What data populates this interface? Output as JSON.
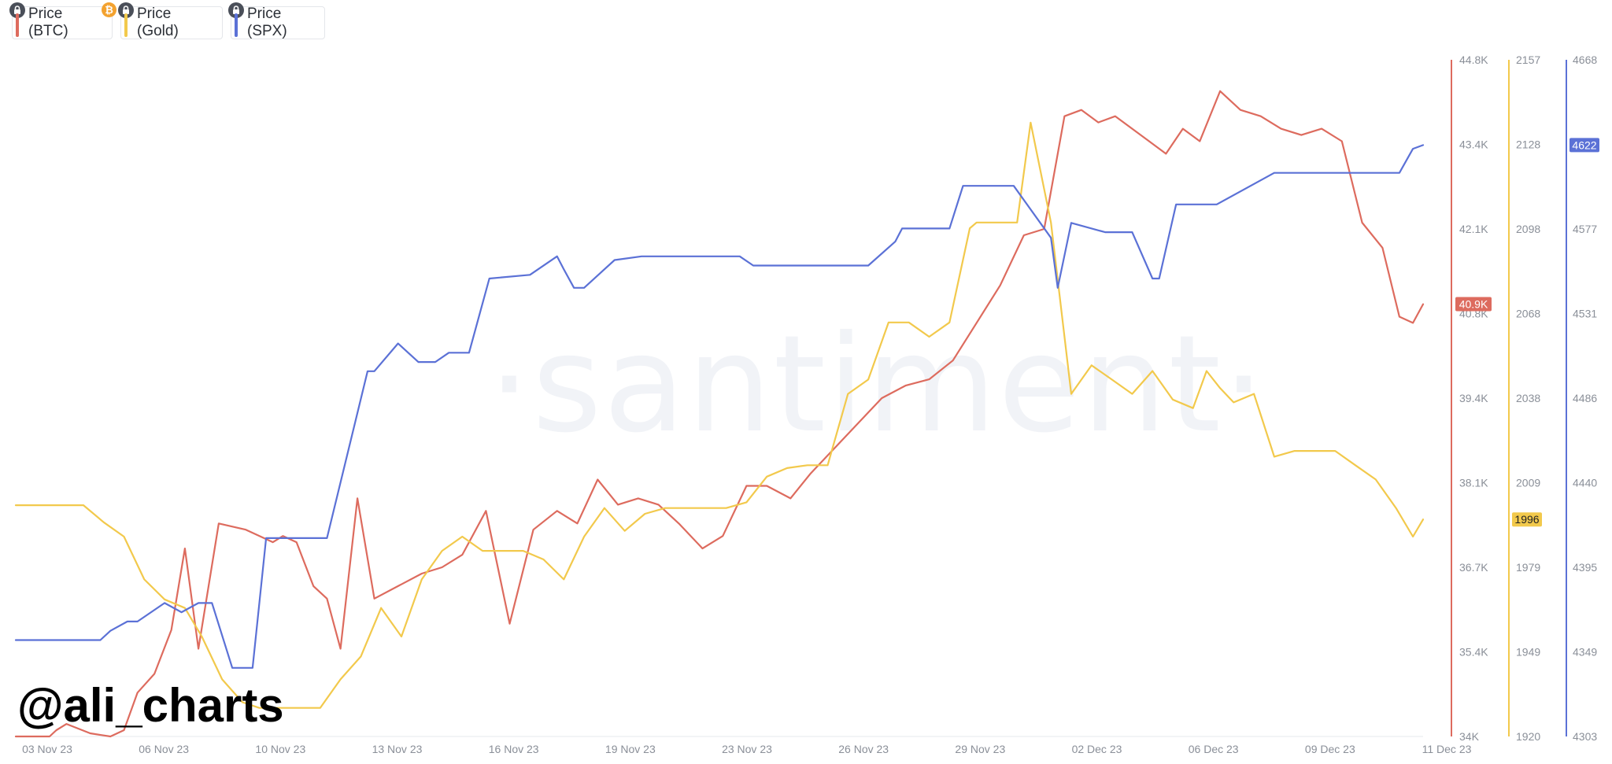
{
  "legend": {
    "btc_label": "Price (BTC)",
    "gold_label": "Price (Gold)",
    "spx_label": "Price (SPX)",
    "btc_badge_symbol": "₿"
  },
  "watermark": "·santiment·",
  "handle": "@ali_charts",
  "colors": {
    "btc": "#dd6b5e",
    "gold": "#f2c94c",
    "spx": "#5b71d6",
    "axis_text": "#8a8f98"
  },
  "icons": {
    "lock": "lock-icon",
    "btc": "bitcoin-icon"
  },
  "chart_data": {
    "type": "line",
    "x_start": "03 Nov 23",
    "x_end": "11 Dec 23",
    "x_ticks": [
      "03 Nov 23",
      "06 Nov 23",
      "10 Nov 23",
      "13 Nov 23",
      "16 Nov 23",
      "19 Nov 23",
      "23 Nov 23",
      "26 Nov 23",
      "29 Nov 23",
      "02 Dec 23",
      "06 Dec 23",
      "09 Dec 23",
      "11 Dec 23"
    ],
    "axes": {
      "btc": {
        "range": [
          34000,
          44800
        ],
        "ticks": [
          "44.8K",
          "43.4K",
          "42.1K",
          "40.8K",
          "39.4K",
          "38.1K",
          "36.7K",
          "35.4K",
          "34K"
        ],
        "current": "40.9K",
        "current_value": 40900
      },
      "gold": {
        "range": [
          1920,
          2157
        ],
        "ticks": [
          "2157",
          "2128",
          "2098",
          "2068",
          "2038",
          "2009",
          "1979",
          "1949",
          "1920"
        ],
        "current": "1996",
        "current_value": 1996
      },
      "spx": {
        "range": [
          4303,
          4668
        ],
        "ticks": [
          "4668",
          "4622",
          "4577",
          "4531",
          "4486",
          "4440",
          "4395",
          "4349",
          "4303"
        ],
        "current": "4622",
        "current_value": 4622
      }
    },
    "series": [
      {
        "name": "Price (BTC)",
        "axis": "btc",
        "x": [
          0,
          1.0,
          1.2,
          1.5,
          2.2,
          2.8,
          3.2,
          3.6,
          4.1,
          4.6,
          5.0,
          5.4,
          6.0,
          6.8,
          7.6,
          7.9,
          8.3,
          8.8,
          9.2,
          9.6,
          10.1,
          10.6,
          11.3,
          12.0,
          12.6,
          13.2,
          13.9,
          14.6,
          15.3,
          16.0,
          16.6,
          17.2,
          17.8,
          18.4,
          19.0,
          19.6,
          20.3,
          20.9,
          21.6,
          22.2,
          22.9,
          23.5,
          24.2,
          24.9,
          25.6,
          26.3,
          27.0,
          27.7,
          28.4,
          29.1,
          29.8,
          30.4,
          31.0,
          31.5,
          32.0,
          32.5,
          33.0,
          33.5,
          34.0,
          34.5,
          35.0,
          35.6,
          36.2,
          36.8,
          37.4,
          38.0,
          38.6,
          39.2,
          39.8,
          40.4,
          40.9,
          41.3,
          41.6
        ],
        "values": [
          34000,
          34000,
          34100,
          34200,
          34050,
          34000,
          34100,
          34700,
          35000,
          35700,
          37000,
          35400,
          37400,
          37300,
          37100,
          37200,
          37100,
          36400,
          36200,
          35400,
          37800,
          36200,
          36400,
          36600,
          36700,
          36900,
          37600,
          35800,
          37300,
          37600,
          37400,
          38100,
          37700,
          37800,
          37700,
          37400,
          37000,
          37200,
          38000,
          38000,
          37800,
          38200,
          38600,
          39000,
          39400,
          39600,
          39700,
          40000,
          40600,
          41200,
          42000,
          42100,
          43900,
          44000,
          43800,
          43900,
          43700,
          43500,
          43300,
          43700,
          43500,
          44300,
          44000,
          43900,
          43700,
          43600,
          43700,
          43500,
          42200,
          41800,
          40700,
          40600,
          40900
        ]
      },
      {
        "name": "Price (Gold)",
        "axis": "gold",
        "x": [
          0,
          1.0,
          2.0,
          2.6,
          3.2,
          3.8,
          4.4,
          5.0,
          5.5,
          6.1,
          6.7,
          7.2,
          7.8,
          8.4,
          9.0,
          9.6,
          10.2,
          10.8,
          11.4,
          12.0,
          12.6,
          13.2,
          13.8,
          14.4,
          15.0,
          15.6,
          16.2,
          16.8,
          17.4,
          18.0,
          18.6,
          19.2,
          19.8,
          20.4,
          21.0,
          21.6,
          22.2,
          22.8,
          23.4,
          24.0,
          24.6,
          25.2,
          25.8,
          26.4,
          27.0,
          27.6,
          28.2,
          28.4,
          28.7,
          29.0,
          29.3,
          29.6,
          30.0,
          30.6,
          31.2,
          31.8,
          32.4,
          33.0,
          33.6,
          34.2,
          34.8,
          35.2,
          35.6,
          36.0,
          36.6,
          37.2,
          37.8,
          38.4,
          39.0,
          39.6,
          40.2,
          40.8,
          41.3,
          41.6
        ],
        "values": [
          2001,
          2001,
          2001,
          1995,
          1990,
          1975,
          1968,
          1965,
          1955,
          1940,
          1932,
          1930,
          1930,
          1930,
          1930,
          1940,
          1948,
          1965,
          1955,
          1975,
          1985,
          1990,
          1985,
          1985,
          1985,
          1982,
          1975,
          1990,
          2000,
          1992,
          1998,
          2000,
          2000,
          2000,
          2000,
          2002,
          2011,
          2014,
          2015,
          2015,
          2040,
          2045,
          2065,
          2065,
          2060,
          2065,
          2098,
          2100,
          2100,
          2100,
          2100,
          2100,
          2135,
          2100,
          2040,
          2050,
          2045,
          2040,
          2048,
          2038,
          2035,
          2048,
          2042,
          2037,
          2040,
          2018,
          2020,
          2020,
          2020,
          2015,
          2010,
          2000,
          1990,
          1996
        ]
      },
      {
        "name": "Price (SPX)",
        "axis": "spx",
        "x": [
          0,
          2.5,
          2.8,
          3.3,
          3.6,
          4.4,
          4.9,
          5.4,
          5.8,
          6.4,
          7.0,
          7.4,
          7.7,
          9.2,
          10.4,
          10.6,
          11.3,
          11.9,
          12.4,
          12.8,
          13.4,
          14.0,
          15.2,
          16.0,
          16.2,
          16.5,
          16.8,
          17.7,
          18.5,
          20.0,
          21.4,
          21.8,
          22.6,
          23.4,
          24.2,
          25.2,
          26.0,
          26.2,
          26.8,
          27.0,
          27.6,
          28.0,
          28.6,
          29.5,
          30.6,
          30.8,
          31.2,
          32.2,
          32.6,
          33.0,
          33.6,
          33.8,
          34.3,
          35.0,
          35.5,
          37.2,
          39.5,
          40.6,
          40.9,
          41.3,
          41.6
        ],
        "values": [
          4355,
          4355,
          4360,
          4365,
          4365,
          4375,
          4370,
          4375,
          4375,
          4340,
          4340,
          4410,
          4410,
          4410,
          4500,
          4500,
          4515,
          4505,
          4505,
          4510,
          4510,
          4550,
          4552,
          4562,
          4555,
          4545,
          4545,
          4560,
          4562,
          4562,
          4562,
          4557,
          4557,
          4557,
          4557,
          4557,
          4570,
          4577,
          4577,
          4577,
          4577,
          4600,
          4600,
          4600,
          4572,
          4545,
          4580,
          4575,
          4575,
          4575,
          4550,
          4550,
          4590,
          4590,
          4590,
          4607,
          4607,
          4607,
          4607,
          4620,
          4622
        ]
      }
    ],
    "xlabel": "",
    "ylabel": "",
    "grid": false,
    "legend_position": "top-left"
  }
}
